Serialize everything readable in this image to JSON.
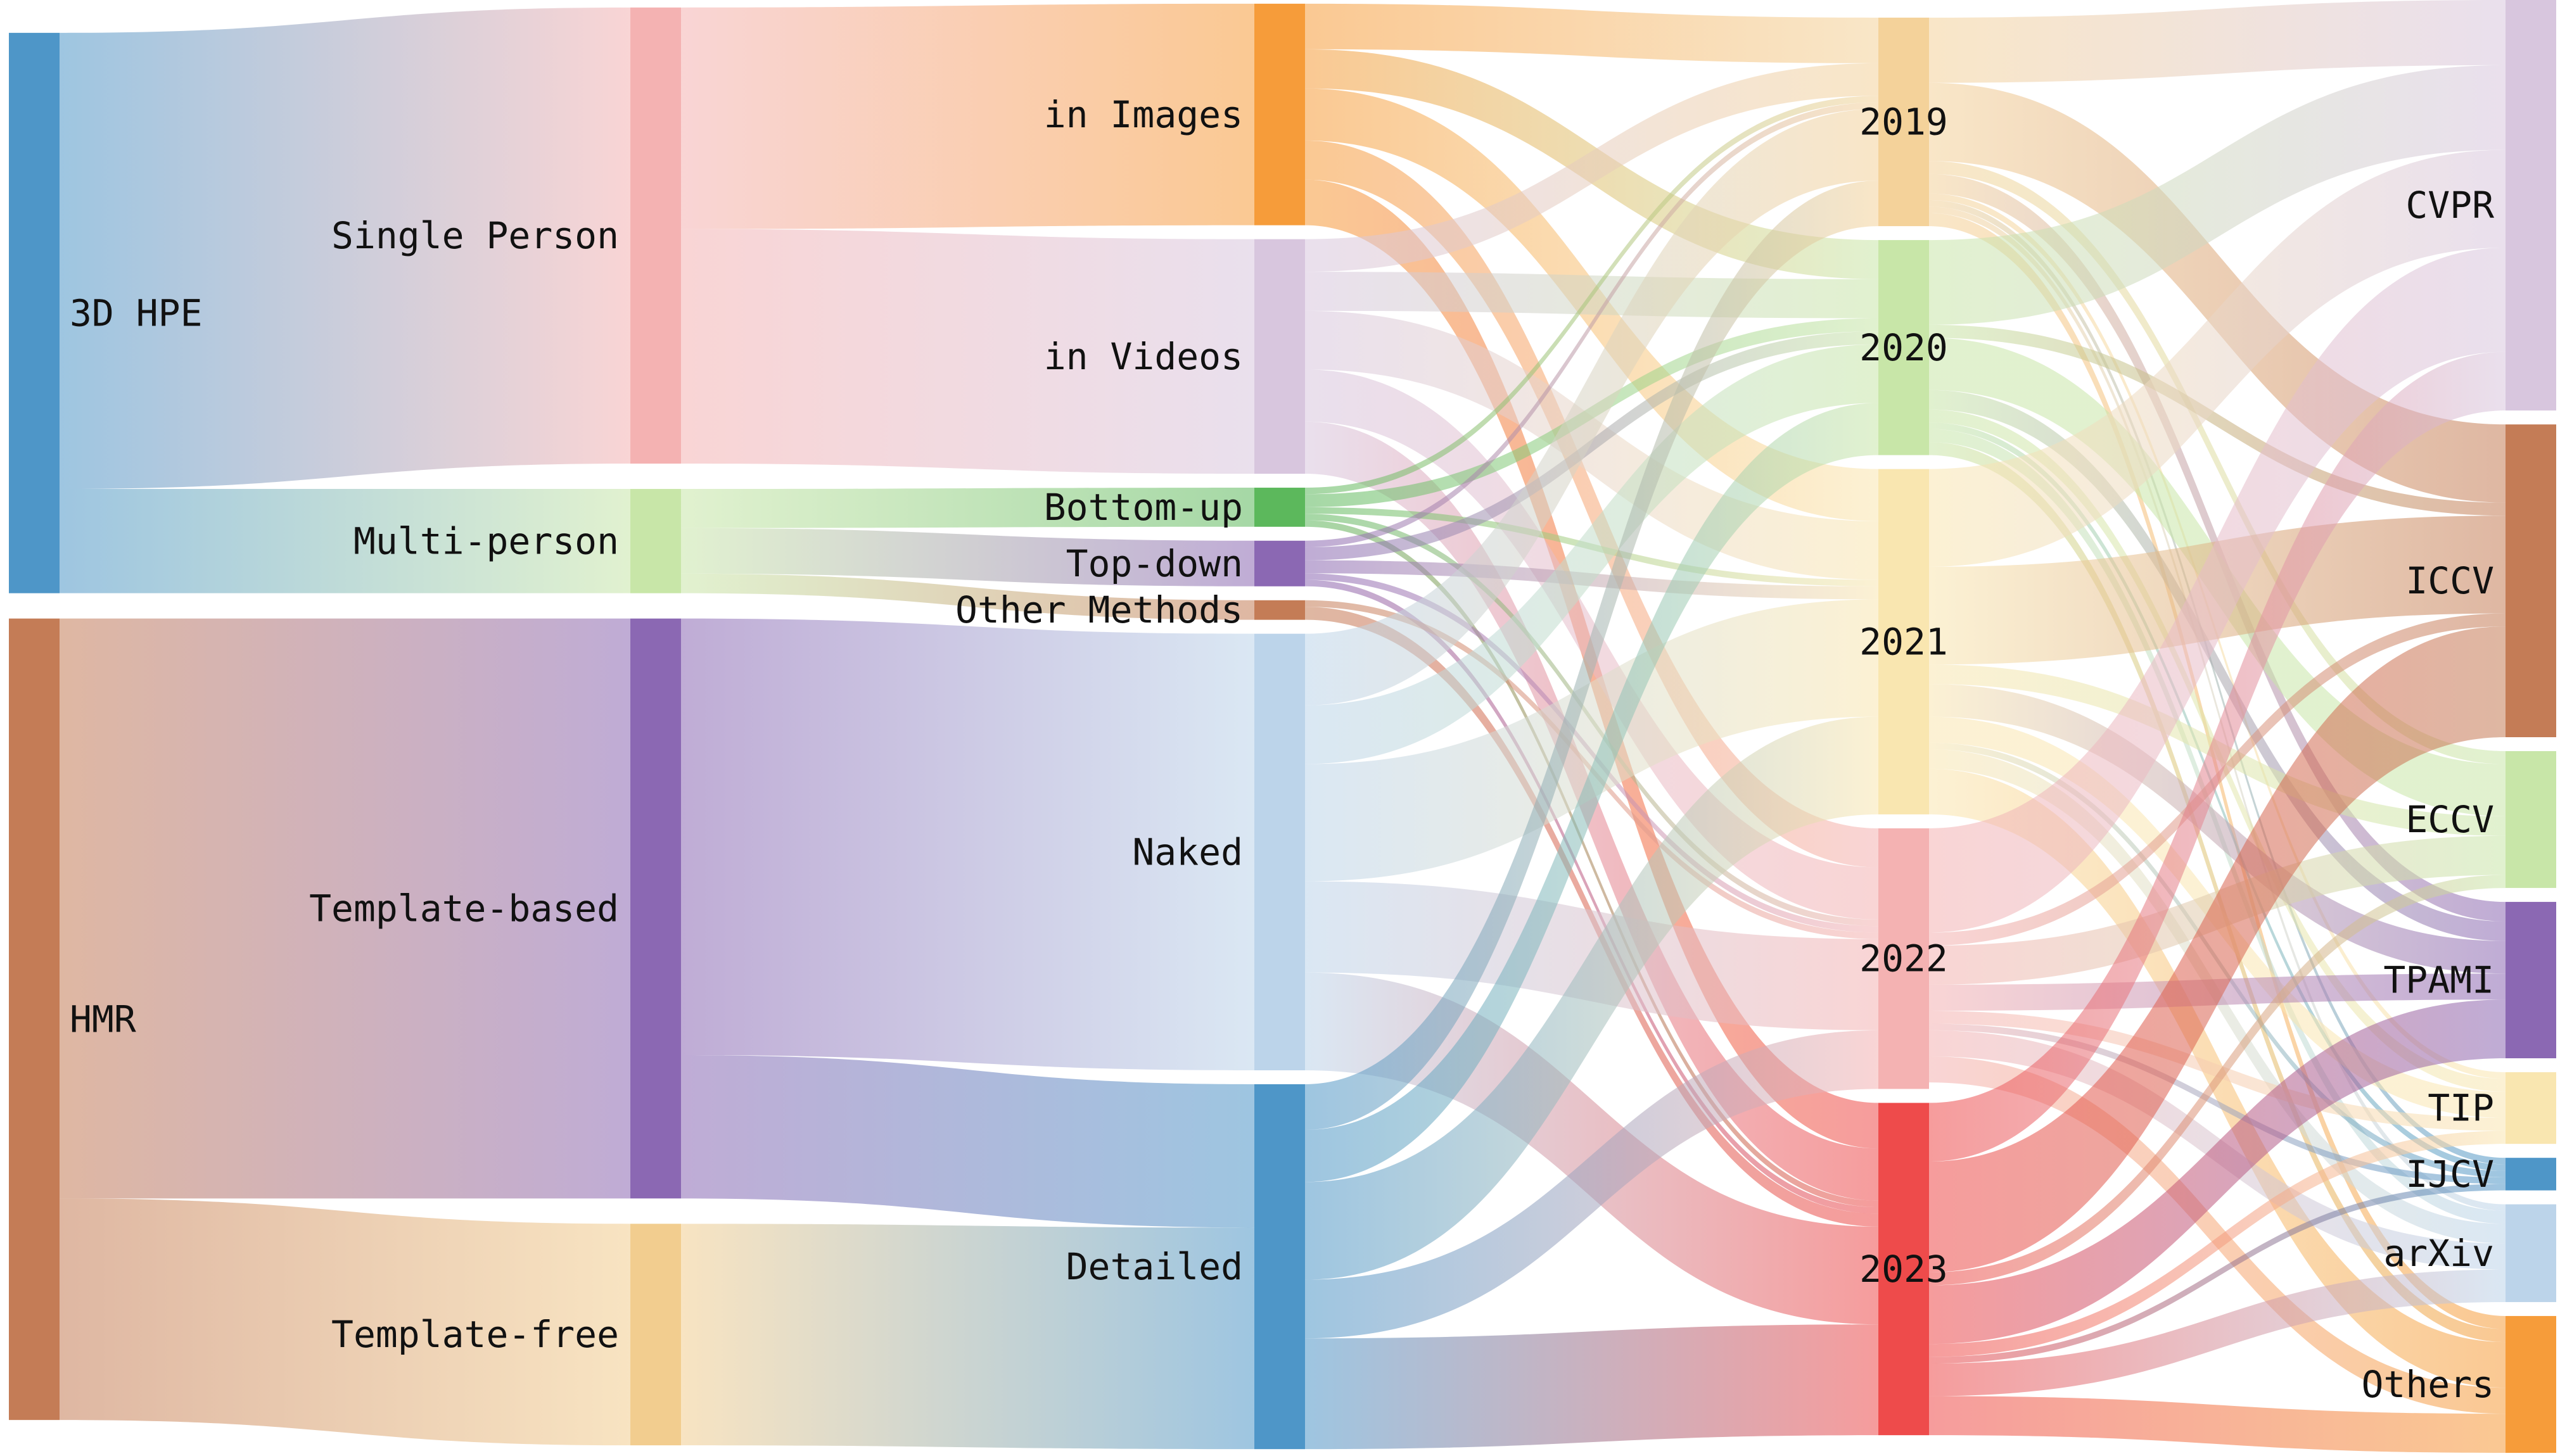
{
  "colors": {
    "3D HPE": "#4e96c8",
    "HMR": "#c47c56",
    "Single Person": "#f4b2b2",
    "Multi-person": "#c8e6a8",
    "Template-based": "#8b68b3",
    "Template-free": "#f2cd8f",
    "in Images": "#f69c3a",
    "in Videos": "#d8c6de",
    "Bottom-up": "#5cb85c",
    "Top-down": "#8b68b3",
    "Other Methods": "#c47c56",
    "Naked": "#bcd4ea",
    "Detailed": "#4e96c8",
    "2019": "#f4d29a",
    "2020": "#c8e6a8",
    "2021": "#f9e6b0",
    "2022": "#f4b2b2",
    "2023": "#ee4b4b",
    "CVPR": "#d8c6de",
    "ICCV": "#c47c56",
    "ECCV": "#c8e6a8",
    "TPAMI": "#8b68b3",
    "TIP": "#f9e6b0",
    "IJCV": "#4e96c8",
    "arXiv": "#bcd4ea",
    "Others": "#f69c3a"
  },
  "diagram": {
    "columns": [
      [
        "3D HPE",
        "HMR"
      ],
      [
        "Single Person",
        "Multi-person",
        "Template-based",
        "Template-free"
      ],
      [
        "in Images",
        "in Videos",
        "Bottom-up",
        "Top-down",
        "Other Methods",
        "Naked",
        "Detailed"
      ],
      [
        "2019",
        "2020",
        "2021",
        "2022",
        "2023"
      ],
      [
        "CVPR",
        "ICCV",
        "ECCV",
        "TPAMI",
        "TIP",
        "IJCV",
        "arXiv",
        "Others"
      ]
    ],
    "labels": {
      "3D HPE": "3D HPE",
      "HMR": "HMR",
      "Single Person": "Single Person",
      "Multi-person": "Multi-person",
      "Template-based": "Template-based",
      "Template-free": "Template-free",
      "in Images": "in Images",
      "in Videos": "in Videos",
      "Bottom-up": "Bottom-up",
      "Top-down": "Top-down",
      "Other Methods": "Other Methods",
      "Naked": "Naked",
      "Detailed": "Detailed",
      "2019": "2019",
      "2020": "2020",
      "2021": "2021",
      "2022": "2022",
      "2023": "2023",
      "CVPR": "CVPR",
      "ICCV": "ICCV",
      "ECCV": "ECCV",
      "TPAMI": "TPAMI",
      "TIP": "TIP",
      "IJCV": "IJCV",
      "arXiv": "arXiv",
      "Others": "Others"
    },
    "links": [
      {
        "source": "3D HPE",
        "target": "Single Person",
        "value": 70
      },
      {
        "source": "3D HPE",
        "target": "Multi-person",
        "value": 16
      },
      {
        "source": "HMR",
        "target": "Template-based",
        "value": 89
      },
      {
        "source": "HMR",
        "target": "Template-free",
        "value": 34
      },
      {
        "source": "Single Person",
        "target": "in Images",
        "value": 34
      },
      {
        "source": "Single Person",
        "target": "in Videos",
        "value": 36
      },
      {
        "source": "Multi-person",
        "target": "Bottom-up",
        "value": 6
      },
      {
        "source": "Multi-person",
        "target": "Top-down",
        "value": 7
      },
      {
        "source": "Multi-person",
        "target": "Other Methods",
        "value": 3
      },
      {
        "source": "Template-based",
        "target": "Naked",
        "value": 67
      },
      {
        "source": "Template-based",
        "target": "Detailed",
        "value": 22
      },
      {
        "source": "Template-free",
        "target": "Detailed",
        "value": 34
      },
      {
        "source": "in Images",
        "target": "2019",
        "value": 7
      },
      {
        "source": "in Images",
        "target": "2020",
        "value": 6
      },
      {
        "source": "in Images",
        "target": "2021",
        "value": 8
      },
      {
        "source": "in Images",
        "target": "2022",
        "value": 6
      },
      {
        "source": "in Images",
        "target": "2023",
        "value": 7
      },
      {
        "source": "in Videos",
        "target": "2019",
        "value": 5
      },
      {
        "source": "in Videos",
        "target": "2020",
        "value": 6
      },
      {
        "source": "in Videos",
        "target": "2021",
        "value": 9
      },
      {
        "source": "in Videos",
        "target": "2022",
        "value": 8
      },
      {
        "source": "in Videos",
        "target": "2023",
        "value": 8
      },
      {
        "source": "Bottom-up",
        "target": "2019",
        "value": 1
      },
      {
        "source": "Bottom-up",
        "target": "2020",
        "value": 2
      },
      {
        "source": "Bottom-up",
        "target": "2021",
        "value": 1
      },
      {
        "source": "Bottom-up",
        "target": "2022",
        "value": 1
      },
      {
        "source": "Bottom-up",
        "target": "2023",
        "value": 1
      },
      {
        "source": "Top-down",
        "target": "2019",
        "value": 1
      },
      {
        "source": "Top-down",
        "target": "2020",
        "value": 2
      },
      {
        "source": "Top-down",
        "target": "2021",
        "value": 2
      },
      {
        "source": "Top-down",
        "target": "2022",
        "value": 1
      },
      {
        "source": "Top-down",
        "target": "2023",
        "value": 1
      },
      {
        "source": "Other Methods",
        "target": "2022",
        "value": 1
      },
      {
        "source": "Other Methods",
        "target": "2023",
        "value": 2
      },
      {
        "source": "Naked",
        "target": "2019",
        "value": 11
      },
      {
        "source": "Naked",
        "target": "2020",
        "value": 9
      },
      {
        "source": "Naked",
        "target": "2021",
        "value": 18
      },
      {
        "source": "Naked",
        "target": "2022",
        "value": 14
      },
      {
        "source": "Naked",
        "target": "2023",
        "value": 15
      },
      {
        "source": "Detailed",
        "target": "2019",
        "value": 7
      },
      {
        "source": "Detailed",
        "target": "2020",
        "value": 8
      },
      {
        "source": "Detailed",
        "target": "2021",
        "value": 15
      },
      {
        "source": "Detailed",
        "target": "2022",
        "value": 9
      },
      {
        "source": "Detailed",
        "target": "2023",
        "value": 17
      },
      {
        "source": "2019",
        "target": "CVPR",
        "value": 10
      },
      {
        "source": "2019",
        "target": "ICCV",
        "value": 12
      },
      {
        "source": "2019",
        "target": "ECCV",
        "value": 2
      },
      {
        "source": "2019",
        "target": "TPAMI",
        "value": 3
      },
      {
        "source": "2019",
        "target": "TIP",
        "value": 1
      },
      {
        "source": "2019",
        "target": "IJCV",
        "value": 1
      },
      {
        "source": "2019",
        "target": "arXiv",
        "value": 1
      },
      {
        "source": "2019",
        "target": "Others",
        "value": 2
      },
      {
        "source": "2020",
        "target": "CVPR",
        "value": 13
      },
      {
        "source": "2020",
        "target": "ICCV",
        "value": 2
      },
      {
        "source": "2020",
        "target": "ECCV",
        "value": 8
      },
      {
        "source": "2020",
        "target": "TPAMI",
        "value": 3
      },
      {
        "source": "2020",
        "target": "TIP",
        "value": 2
      },
      {
        "source": "2020",
        "target": "IJCV",
        "value": 1
      },
      {
        "source": "2020",
        "target": "arXiv",
        "value": 2
      },
      {
        "source": "2020",
        "target": "Others",
        "value": 2
      },
      {
        "source": "2021",
        "target": "CVPR",
        "value": 15
      },
      {
        "source": "2021",
        "target": "ICCV",
        "value": 15
      },
      {
        "source": "2021",
        "target": "ECCV",
        "value": 3
      },
      {
        "source": "2021",
        "target": "TPAMI",
        "value": 5
      },
      {
        "source": "2021",
        "target": "TIP",
        "value": 4
      },
      {
        "source": "2021",
        "target": "IJCV",
        "value": 1
      },
      {
        "source": "2021",
        "target": "arXiv",
        "value": 3
      },
      {
        "source": "2021",
        "target": "Others",
        "value": 7
      },
      {
        "source": "2022",
        "target": "CVPR",
        "value": 16
      },
      {
        "source": "2022",
        "target": "ICCV",
        "value": 2
      },
      {
        "source": "2022",
        "target": "ECCV",
        "value": 6
      },
      {
        "source": "2022",
        "target": "TPAMI",
        "value": 4
      },
      {
        "source": "2022",
        "target": "TIP",
        "value": 2
      },
      {
        "source": "2022",
        "target": "IJCV",
        "value": 1
      },
      {
        "source": "2022",
        "target": "arXiv",
        "value": 4
      },
      {
        "source": "2022",
        "target": "Others",
        "value": 4
      },
      {
        "source": "2023",
        "target": "CVPR",
        "value": 9
      },
      {
        "source": "2023",
        "target": "ICCV",
        "value": 17
      },
      {
        "source": "2023",
        "target": "ECCV",
        "value": 2
      },
      {
        "source": "2023",
        "target": "TPAMI",
        "value": 9
      },
      {
        "source": "2023",
        "target": "TIP",
        "value": 2
      },
      {
        "source": "2023",
        "target": "IJCV",
        "value": 1
      },
      {
        "source": "2023",
        "target": "arXiv",
        "value": 5
      },
      {
        "source": "2023",
        "target": "Others",
        "value": 6
      }
    ]
  }
}
